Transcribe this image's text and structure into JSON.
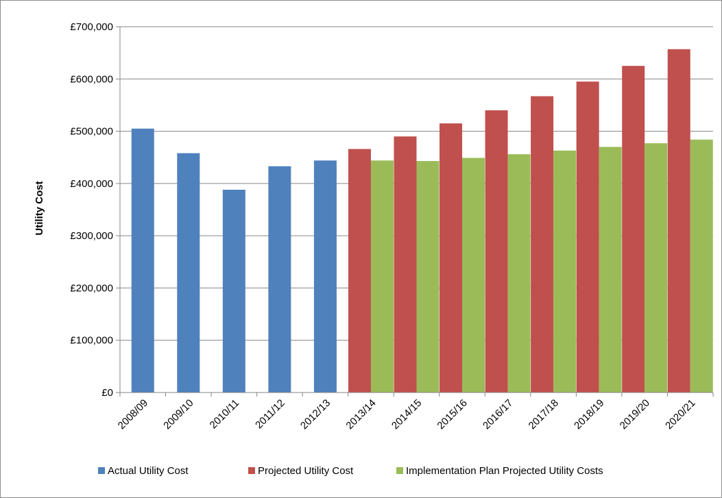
{
  "chart_data": {
    "type": "bar",
    "title": "",
    "xlabel": "",
    "ylabel": "Utility Cost",
    "ylim": [
      0,
      700000
    ],
    "ytick_step": 100000,
    "ytick_labels": [
      "£0",
      "£100,000",
      "£200,000",
      "£300,000",
      "£400,000",
      "£500,000",
      "£600,000",
      "£700,000"
    ],
    "grid": true,
    "legend_position": "bottom",
    "categories": [
      "2008/09",
      "2009/10",
      "2010/11",
      "2011/12",
      "2012/13",
      "2013/14",
      "2014/15",
      "2015/16",
      "2016/17",
      "2017/18",
      "2018/19",
      "2019/20",
      "2020/21"
    ],
    "series": [
      {
        "name": "Actual Utility Cost",
        "color": "#4f81bd",
        "values": [
          505000,
          458000,
          388000,
          433000,
          444000,
          null,
          null,
          null,
          null,
          null,
          null,
          null,
          null
        ]
      },
      {
        "name": "Projected Utility Cost",
        "color": "#c0504d",
        "values": [
          null,
          null,
          null,
          null,
          null,
          466000,
          490000,
          515000,
          540000,
          567000,
          595000,
          625000,
          657000
        ]
      },
      {
        "name": "Implementation Plan Projected Utility Costs",
        "color": "#9bbb59",
        "values": [
          null,
          null,
          null,
          null,
          null,
          444000,
          443000,
          449000,
          456000,
          463000,
          470000,
          477000,
          484000
        ]
      }
    ]
  }
}
